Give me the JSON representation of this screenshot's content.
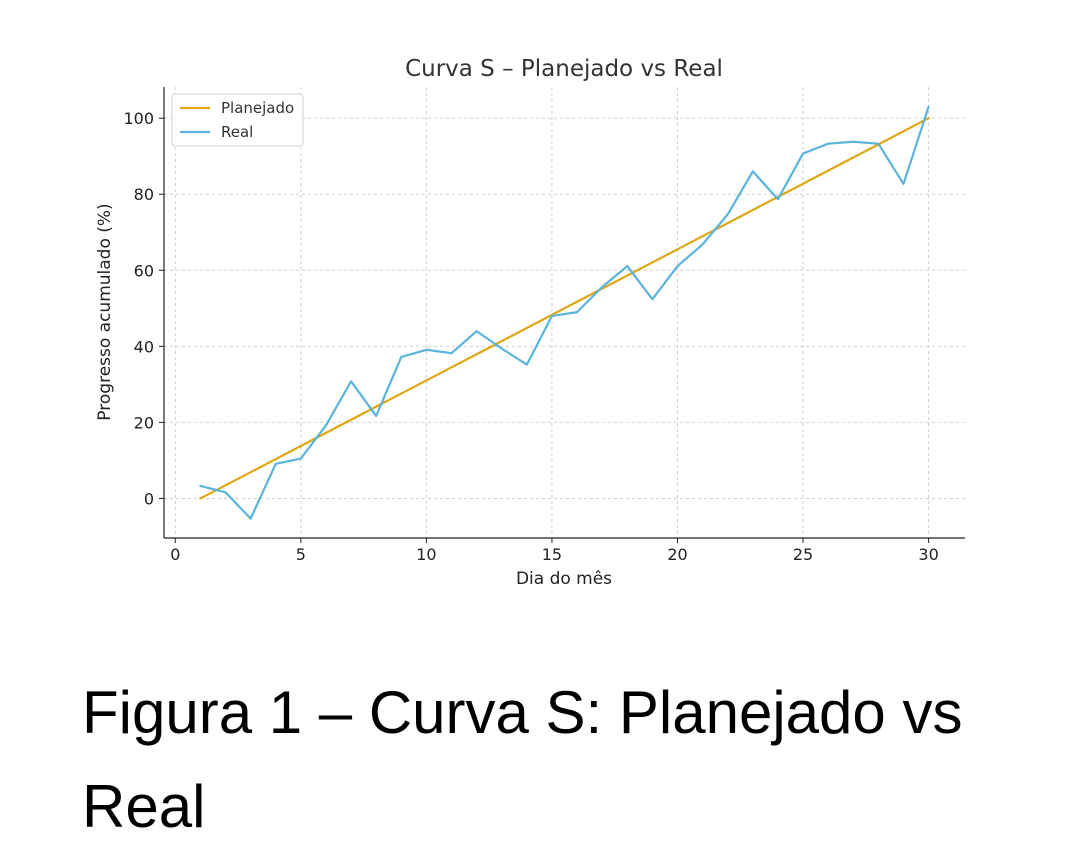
{
  "chart_data": {
    "type": "line",
    "title": "Curva S – Planejado vs Real",
    "xlabel": "Dia do mês",
    "ylabel": "Progresso acumulado (%)",
    "xlim": [
      -0.45,
      31.45
    ],
    "ylim": [
      -10.4,
      108.2
    ],
    "xticks": [
      0,
      5,
      10,
      15,
      20,
      25,
      30
    ],
    "yticks": [
      0,
      20,
      40,
      60,
      80,
      100
    ],
    "grid": true,
    "legend_position": "top-left",
    "x": [
      1,
      2,
      3,
      4,
      5,
      6,
      7,
      8,
      9,
      10,
      11,
      12,
      13,
      14,
      15,
      16,
      17,
      18,
      19,
      20,
      21,
      22,
      23,
      24,
      25,
      26,
      27,
      28,
      29,
      30
    ],
    "series": [
      {
        "name": "Planejado",
        "color": "#E0A614",
        "values": [
          0,
          3.45,
          6.9,
          10.34,
          13.79,
          17.24,
          20.69,
          24.14,
          27.59,
          31.03,
          34.48,
          37.93,
          41.38,
          44.83,
          48.28,
          51.72,
          55.17,
          58.62,
          62.07,
          65.52,
          68.97,
          72.41,
          75.86,
          79.31,
          82.76,
          86.21,
          89.66,
          93.1,
          96.55,
          100
        ]
      },
      {
        "name": "Real",
        "color": "#5AB4DC",
        "values": [
          3.3,
          1.6,
          -5.3,
          9.1,
          10.5,
          19.2,
          30.8,
          21.7,
          37.2,
          39.1,
          38.2,
          44,
          39.4,
          35.2,
          48,
          49,
          55.6,
          61.1,
          52.4,
          61.1,
          66.8,
          74.7,
          86,
          78.7,
          90.7,
          93.3,
          93.8,
          93.3,
          82.7,
          103
        ]
      }
    ]
  },
  "caption": "Figura 1 – Curva S: Planejado vs Real"
}
